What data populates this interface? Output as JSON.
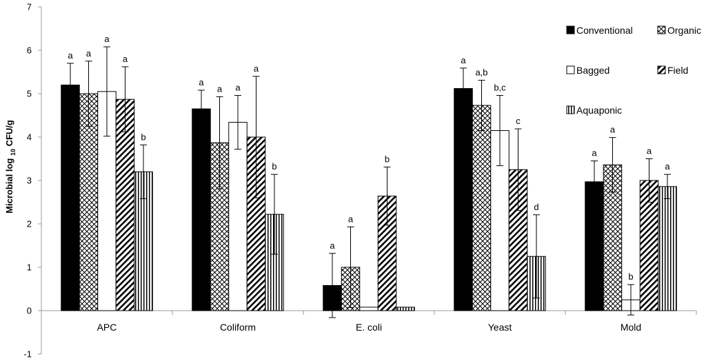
{
  "chart_data": {
    "type": "bar",
    "title": "",
    "xlabel": "",
    "ylabel": {
      "prefix": "Microbial log",
      "sub": "10",
      "suffix": "CFU/g"
    },
    "ylim": [
      -1,
      7
    ],
    "yticks": [
      -1,
      0,
      1,
      2,
      3,
      4,
      5,
      6,
      7
    ],
    "legend_position": "top-right",
    "categories": [
      "APC",
      "Coliform",
      "E. coli",
      "Yeast",
      "Mold"
    ],
    "series": [
      {
        "name": "Conventional",
        "pattern": "solid",
        "values": [
          5.2,
          4.65,
          0.58,
          5.12,
          2.97
        ],
        "errors": [
          0.5,
          0.43,
          0.74,
          0.47,
          0.48
        ],
        "labels": [
          "a",
          "a",
          "a",
          "a",
          "a"
        ]
      },
      {
        "name": "Organic",
        "pattern": "crosshatch",
        "values": [
          5.0,
          3.87,
          1.0,
          4.73,
          3.36
        ],
        "errors": [
          0.75,
          1.06,
          0.93,
          0.58,
          0.63
        ],
        "labels": [
          "a",
          "a",
          "a",
          "a,b",
          "a"
        ]
      },
      {
        "name": "Bagged",
        "pattern": "white",
        "values": [
          5.05,
          4.34,
          0.08,
          4.15,
          0.25
        ],
        "errors": [
          1.03,
          0.62,
          0.0,
          0.81,
          0.35
        ],
        "labels": [
          "a",
          "a",
          "",
          "b,c",
          "b"
        ]
      },
      {
        "name": "Field",
        "pattern": "diagonal",
        "values": [
          4.87,
          4.0,
          2.64,
          3.25,
          3.0
        ],
        "errors": [
          0.75,
          1.4,
          0.67,
          0.94,
          0.5
        ],
        "labels": [
          "a",
          "a",
          "b",
          "c",
          "a"
        ]
      },
      {
        "name": "Aquaponic",
        "pattern": "vertical",
        "values": [
          3.2,
          2.22,
          0.08,
          1.25,
          2.86
        ],
        "errors": [
          0.62,
          0.92,
          0.0,
          0.96,
          0.28
        ],
        "labels": [
          "b",
          "b",
          "",
          "d",
          "a"
        ]
      }
    ]
  },
  "colors": {
    "axis": "#9a9a9a",
    "bar_stroke": "#000000",
    "solid": "#000000",
    "white": "#ffffff"
  }
}
